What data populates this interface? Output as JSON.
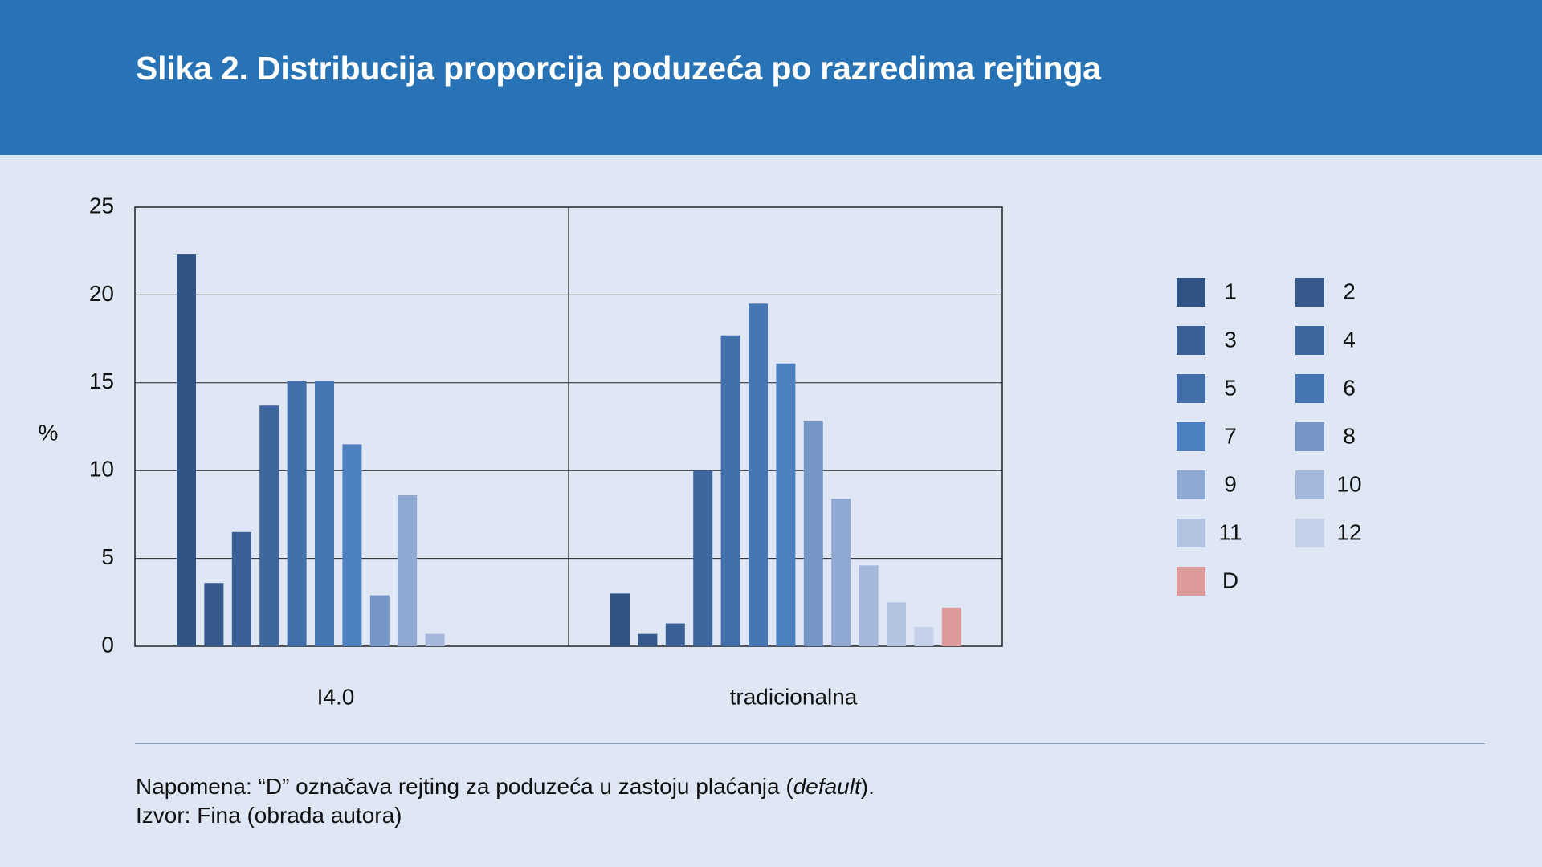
{
  "title": "Slika 2. Distribucija proporcija poduzeća po razredima rejtinga",
  "note": {
    "prefix": "Napomena: “D” označava rejting za poduzeća u zastoju plaćanja (",
    "italic": "default",
    "suffix": ")."
  },
  "source": "Izvor: Fina (obrada autora)",
  "chart_data": {
    "type": "bar",
    "title": "",
    "xlabel": "",
    "ylabel": "%",
    "ylim": [
      0,
      25
    ],
    "yticks": [
      0,
      5,
      10,
      15,
      20,
      25
    ],
    "grid": true,
    "legend_position": "right",
    "groups": [
      "I4.0",
      "tradicionalna"
    ],
    "series": [
      {
        "name": "1",
        "color": "#2f5382",
        "values": [
          22.3,
          3.0
        ]
      },
      {
        "name": "2",
        "color": "#35598a",
        "values": [
          3.6,
          0.7
        ]
      },
      {
        "name": "3",
        "color": "#3a6096",
        "values": [
          6.5,
          1.3
        ]
      },
      {
        "name": "4",
        "color": "#3e67a0",
        "values": [
          13.7,
          10.0
        ]
      },
      {
        "name": "5",
        "color": "#426faa",
        "values": [
          15.1,
          17.7
        ]
      },
      {
        "name": "6",
        "color": "#4676b4",
        "values": [
          15.1,
          19.5
        ]
      },
      {
        "name": "7",
        "color": "#4c80c0",
        "values": [
          11.5,
          16.1
        ]
      },
      {
        "name": "8",
        "color": "#7796c8",
        "values": [
          2.9,
          12.8
        ]
      },
      {
        "name": "9",
        "color": "#8fa8d2",
        "values": [
          8.6,
          8.4
        ]
      },
      {
        "name": "10",
        "color": "#a5b8dc",
        "values": [
          0.7,
          4.6
        ]
      },
      {
        "name": "11",
        "color": "#b3c4e2",
        "values": [
          0,
          2.5
        ]
      },
      {
        "name": "12",
        "color": "#c5d1e8",
        "values": [
          0,
          1.1
        ]
      },
      {
        "name": "D",
        "color": "#dc9a9a",
        "values": [
          0,
          2.2
        ]
      }
    ]
  }
}
